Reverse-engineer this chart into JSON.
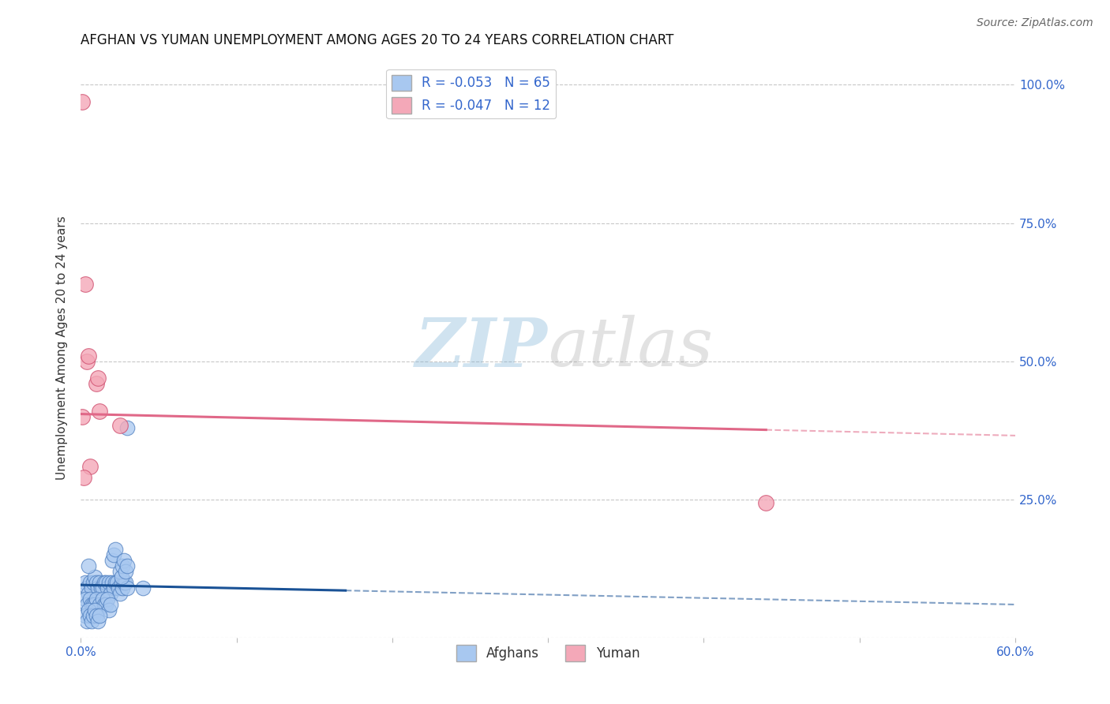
{
  "title": "AFGHAN VS YUMAN UNEMPLOYMENT AMONG AGES 20 TO 24 YEARS CORRELATION CHART",
  "source": "Source: ZipAtlas.com",
  "ylabel": "Unemployment Among Ages 20 to 24 years",
  "xlim": [
    0.0,
    0.6
  ],
  "ylim": [
    0.0,
    1.05
  ],
  "xticks": [
    0.0,
    0.1,
    0.2,
    0.3,
    0.4,
    0.5,
    0.6
  ],
  "xticklabels": [
    "0.0%",
    "",
    "",
    "",
    "",
    "",
    "60.0%"
  ],
  "yticks_right": [
    0.25,
    0.5,
    0.75,
    1.0
  ],
  "yticks_right_labels": [
    "25.0%",
    "50.0%",
    "75.0%",
    "100.0%"
  ],
  "afghan_color": "#a8c8f0",
  "yuman_color": "#f4a8b8",
  "afghan_edge": "#5080c0",
  "yuman_edge": "#d05070",
  "trendline_afghan_color": "#1a5296",
  "trendline_yuman_color": "#e06888",
  "legend_R_afghan": "R = -0.053",
  "legend_N_afghan": "N = 65",
  "legend_R_yuman": "R = -0.047",
  "legend_N_yuman": "N = 12",
  "watermark_zip": "ZIP",
  "watermark_atlas": "atlas",
  "grid_color": "#c8c8c8",
  "background_color": "#ffffff",
  "title_fontsize": 12,
  "afghan_x": [
    0.003,
    0.004,
    0.005,
    0.006,
    0.007,
    0.008,
    0.009,
    0.01,
    0.011,
    0.012,
    0.013,
    0.014,
    0.015,
    0.016,
    0.017,
    0.018,
    0.019,
    0.02,
    0.021,
    0.022,
    0.023,
    0.024,
    0.025,
    0.026,
    0.027,
    0.028,
    0.029,
    0.03,
    0.003,
    0.004,
    0.006,
    0.007,
    0.008,
    0.009,
    0.01,
    0.011,
    0.012,
    0.014,
    0.015,
    0.016,
    0.017,
    0.018,
    0.019,
    0.02,
    0.021,
    0.022,
    0.005,
    0.025,
    0.026,
    0.027,
    0.028,
    0.029,
    0.03,
    0.003,
    0.004,
    0.005,
    0.006,
    0.007,
    0.008,
    0.009,
    0.01,
    0.011,
    0.012,
    0.03,
    0.04
  ],
  "afghan_y": [
    0.1,
    0.09,
    0.08,
    0.1,
    0.09,
    0.1,
    0.11,
    0.1,
    0.09,
    0.1,
    0.09,
    0.09,
    0.1,
    0.1,
    0.09,
    0.1,
    0.08,
    0.1,
    0.09,
    0.1,
    0.1,
    0.09,
    0.08,
    0.1,
    0.09,
    0.1,
    0.1,
    0.09,
    0.07,
    0.06,
    0.07,
    0.06,
    0.06,
    0.06,
    0.07,
    0.05,
    0.06,
    0.07,
    0.06,
    0.06,
    0.07,
    0.05,
    0.06,
    0.14,
    0.15,
    0.16,
    0.13,
    0.12,
    0.11,
    0.13,
    0.14,
    0.12,
    0.13,
    0.04,
    0.03,
    0.05,
    0.04,
    0.03,
    0.04,
    0.05,
    0.04,
    0.03,
    0.04,
    0.38,
    0.09
  ],
  "yuman_x": [
    0.001,
    0.003,
    0.004,
    0.005,
    0.006,
    0.01,
    0.011,
    0.012,
    0.025,
    0.44,
    0.001,
    0.002
  ],
  "yuman_y": [
    0.4,
    0.64,
    0.5,
    0.51,
    0.31,
    0.46,
    0.47,
    0.41,
    0.385,
    0.245,
    0.97,
    0.29
  ]
}
